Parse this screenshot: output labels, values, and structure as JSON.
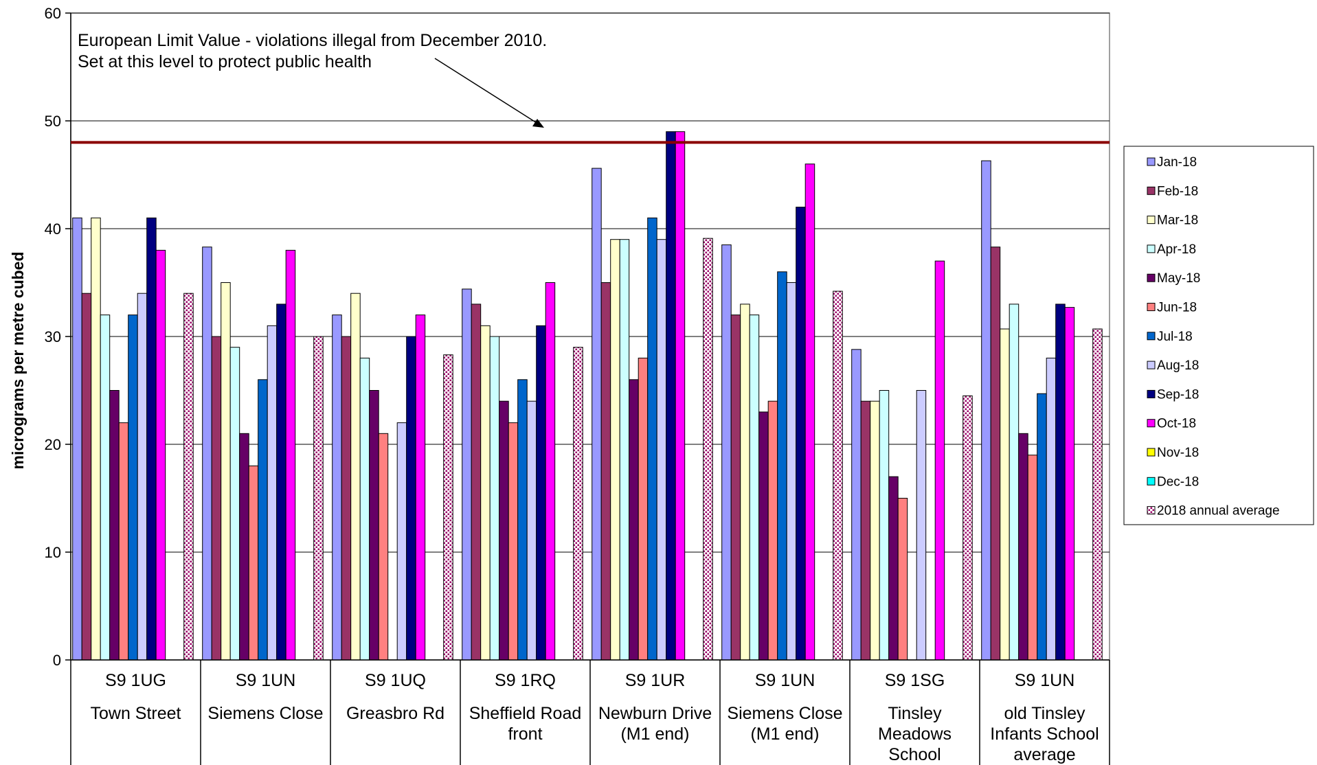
{
  "chart_data": {
    "type": "bar",
    "ylabel": "micrograms per metre cubed",
    "ylim": [
      0,
      60
    ],
    "yticks": [
      0,
      10,
      20,
      30,
      40,
      50,
      60
    ],
    "grid": true,
    "legend_position": "right",
    "limit_line": {
      "value": 48,
      "color": "#8b0000",
      "annotation": [
        "European Limit Value - violations illegal from December 2010.",
        "Set at this level to protect public health"
      ]
    },
    "categories": [
      {
        "code": "S9 1UG",
        "name": [
          "Town Street"
        ]
      },
      {
        "code": "S9 1UN",
        "name": [
          "Siemens Close"
        ]
      },
      {
        "code": "S9 1UQ",
        "name": [
          "Greasbro Rd"
        ]
      },
      {
        "code": "S9 1RQ",
        "name": [
          "Sheffield Road",
          "front"
        ]
      },
      {
        "code": "S9 1UR",
        "name": [
          "Newburn Drive",
          "(M1 end)"
        ]
      },
      {
        "code": "S9 1UN",
        "name": [
          "Siemens Close",
          "(M1 end)"
        ]
      },
      {
        "code": "S9 1SG",
        "name": [
          "Tinsley",
          "Meadows",
          "School"
        ]
      },
      {
        "code": "S9 1UN",
        "name": [
          "old Tinsley",
          "Infants School",
          "average"
        ]
      }
    ],
    "series": [
      {
        "name": "Jan-18",
        "color": "#9999ff",
        "values": [
          41,
          38.3,
          32,
          34.4,
          45.6,
          38.5,
          28.8,
          46.3
        ]
      },
      {
        "name": "Feb-18",
        "color": "#993366",
        "values": [
          34,
          30,
          30,
          33,
          35,
          32,
          24,
          38.3
        ]
      },
      {
        "name": "Mar-18",
        "color": "#ffffcc",
        "values": [
          41,
          35,
          34,
          31,
          39,
          33,
          24,
          30.7
        ]
      },
      {
        "name": "Apr-18",
        "color": "#ccffff",
        "values": [
          32,
          29,
          28,
          30,
          39,
          32,
          25,
          33
        ]
      },
      {
        "name": "May-18",
        "color": "#660066",
        "values": [
          25,
          21,
          25,
          24,
          26,
          23,
          17,
          21
        ]
      },
      {
        "name": "Jun-18",
        "color": "#ff8080",
        "values": [
          22,
          18,
          21,
          22,
          28,
          24,
          15,
          19
        ]
      },
      {
        "name": "Jul-18",
        "color": "#0066cc",
        "values": [
          32,
          26,
          null,
          26,
          41,
          36,
          null,
          24.7
        ]
      },
      {
        "name": "Aug-18",
        "color": "#ccccff",
        "values": [
          34,
          31,
          22,
          24,
          39,
          35,
          25,
          28
        ]
      },
      {
        "name": "Sep-18",
        "color": "#000080",
        "values": [
          41,
          33,
          30,
          31,
          49,
          42,
          null,
          33
        ]
      },
      {
        "name": "Oct-18",
        "color": "#ff00ff",
        "values": [
          38,
          38,
          32,
          35,
          49,
          46,
          37,
          32.7
        ]
      },
      {
        "name": "Nov-18",
        "color": "#ffff00",
        "values": [
          null,
          null,
          null,
          null,
          null,
          null,
          null,
          null
        ]
      },
      {
        "name": "Dec-18",
        "color": "#00ffff",
        "values": [
          null,
          null,
          null,
          null,
          null,
          null,
          null,
          null
        ]
      },
      {
        "name": "2018 annual average",
        "color": "#ffffff",
        "pattern": "dots",
        "values": [
          34,
          30,
          28.3,
          29,
          39.1,
          34.2,
          24.5,
          30.7
        ]
      }
    ]
  }
}
